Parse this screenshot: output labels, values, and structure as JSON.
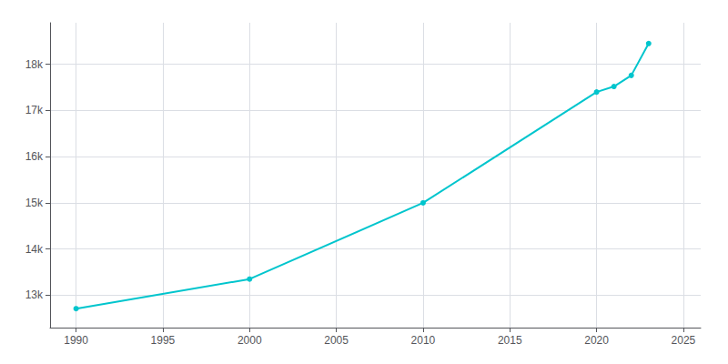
{
  "chart_data": {
    "type": "line",
    "x": [
      1990,
      2000,
      2010,
      2020,
      2021,
      2022,
      2023
    ],
    "values": [
      12710,
      13350,
      15000,
      17400,
      17520,
      17760,
      18450
    ],
    "color": "#00c5cd",
    "marker": "circle",
    "xlim": [
      1988.5,
      2026
    ],
    "xticks": [
      1990,
      1995,
      2000,
      2005,
      2010,
      2015,
      2020,
      2025
    ],
    "ylim": [
      12300,
      18900
    ],
    "yticks": [
      {
        "value": 13000,
        "label": "13k"
      },
      {
        "value": 14000,
        "label": "14k"
      },
      {
        "value": 15000,
        "label": "15k"
      },
      {
        "value": 16000,
        "label": "16k"
      },
      {
        "value": 17000,
        "label": "17k"
      },
      {
        "value": 18000,
        "label": "18k"
      }
    ],
    "grid": true
  }
}
